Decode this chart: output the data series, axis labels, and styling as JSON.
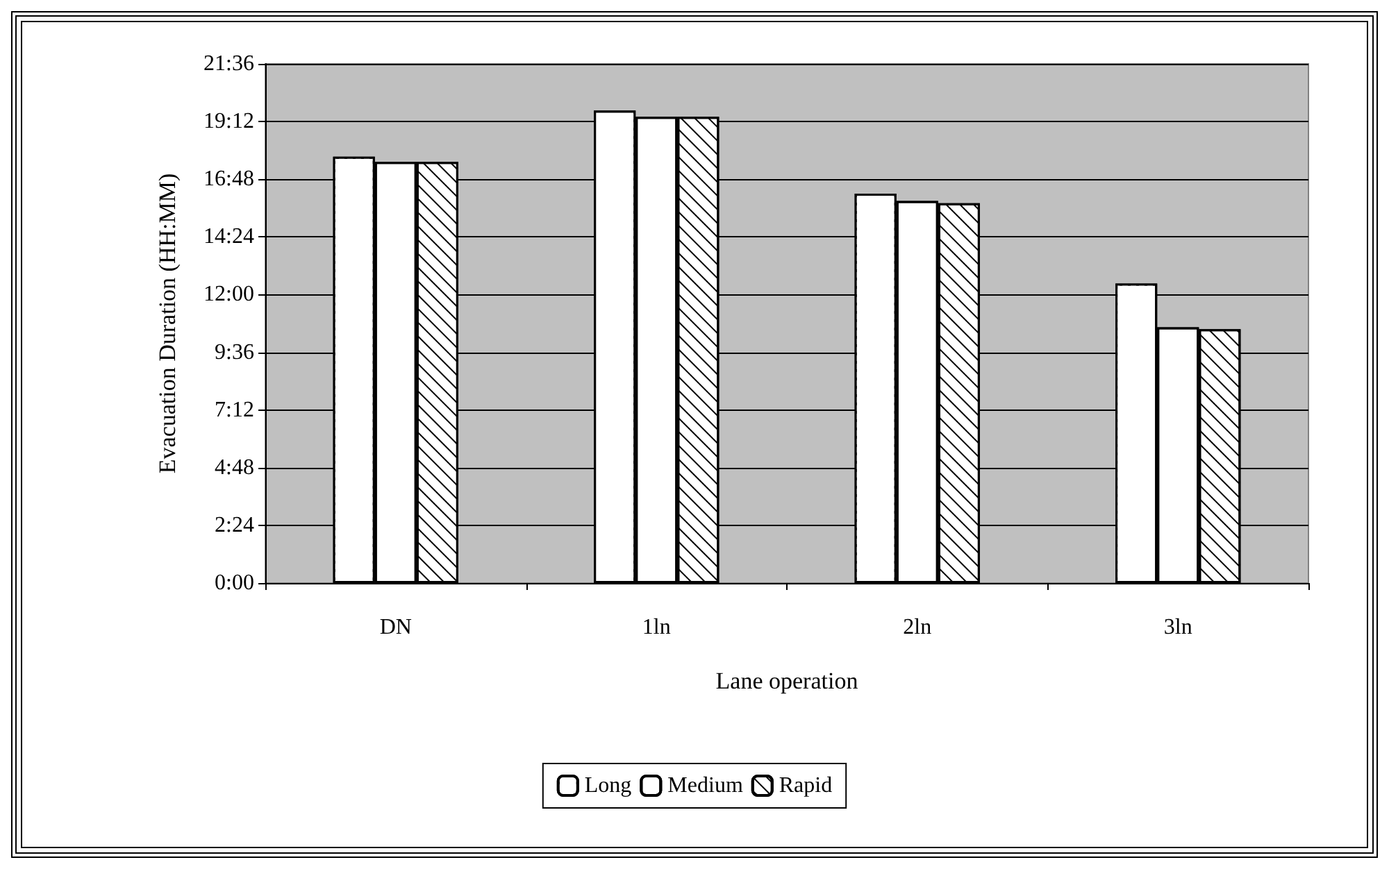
{
  "chart_data": {
    "type": "bar",
    "xlabel": "Lane operation",
    "ylabel": "Evacuation Duration (HH:MM)",
    "categories": [
      "DN",
      "1ln",
      "2ln",
      "3ln"
    ],
    "series": [
      {
        "name": "Long",
        "color": "#ffffff",
        "values": [
          17.74,
          19.66,
          16.2,
          12.46
        ]
      },
      {
        "name": "Medium",
        "color": "#ffffff",
        "values": [
          17.52,
          19.4,
          15.9,
          10.64
        ]
      },
      {
        "name": "Rapid",
        "color": "#ffffff",
        "values": [
          17.52,
          19.4,
          15.8,
          10.56
        ]
      }
    ],
    "ylim": [
      0,
      21.6
    ],
    "yticks": [
      {
        "value": 0,
        "label": "0:00"
      },
      {
        "value": 2.4,
        "label": "2:24"
      },
      {
        "value": 4.8,
        "label": "4:48"
      },
      {
        "value": 7.2,
        "label": "7:12"
      },
      {
        "value": 9.6,
        "label": "9:36"
      },
      {
        "value": 12,
        "label": "12:00"
      },
      {
        "value": 14.4,
        "label": "14:24"
      },
      {
        "value": 16.8,
        "label": "16:48"
      },
      {
        "value": 19.2,
        "label": "19:12"
      },
      {
        "value": 21.6,
        "label": "21:36"
      }
    ],
    "grid": "y",
    "legend": "bottom"
  }
}
